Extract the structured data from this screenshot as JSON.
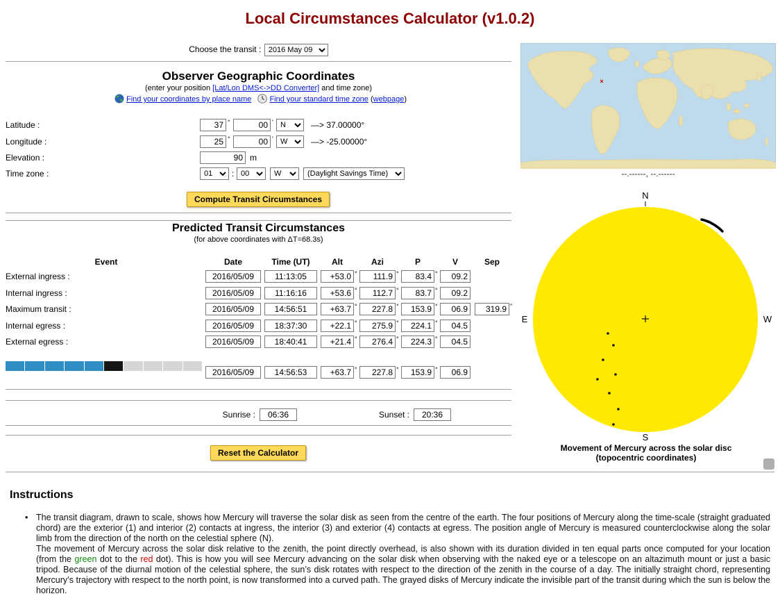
{
  "title": "Local Circumstances Calculator (v1.0.2)",
  "units": {
    "deg": "°",
    "min": "'",
    "arcsec": "\""
  },
  "transit": {
    "label": "Choose the transit :",
    "selected": "2016 May 09"
  },
  "geo": {
    "heading": "Observer Geographic Coordinates",
    "position_prefix": "(enter your position ",
    "converter_link": "[Lat/Lon DMS<->DD Converter]",
    "position_suffix": " and time zone)",
    "find_coords_link": "Find your coordinates by place name",
    "find_tz_link": "Find your standard time zone",
    "webpage_open": "(",
    "webpage_link": "webpage",
    "webpage_close": ")",
    "latitude": {
      "label": "Latitude :",
      "deg": "37",
      "min": "00",
      "hemisphere": "N",
      "decimal": "—> 37.00000°"
    },
    "longitude": {
      "label": "Longitude :",
      "deg": "25",
      "min": "00",
      "hemisphere": "W",
      "decimal": "—> -25.00000°"
    },
    "elevation": {
      "label": "Elevation :",
      "value": "90",
      "unit": "m"
    },
    "timezone": {
      "label": "Time zone :",
      "hour": "01",
      "colon": ":",
      "minute": "00",
      "sign": "W",
      "dst": "(Daylight Savings Time)"
    }
  },
  "buttons": {
    "compute": "Compute Transit Circumstances",
    "reset": "Reset the Calculator"
  },
  "predicted": {
    "heading": "Predicted Transit Circumstances",
    "subheading": "(for above coordinates with ΔT=68.3s)",
    "headers": {
      "event": "Event",
      "date": "Date",
      "time": "Time (UT)",
      "alt": "Alt",
      "azi": "Azi",
      "p": "P",
      "v": "V",
      "sep": "Sep"
    },
    "rows": [
      {
        "label": "External ingress :",
        "date": "2016/05/09",
        "time": "11:13:05",
        "alt": "+53.0",
        "azi": "111.9",
        "p": "83.4",
        "v": "09.2"
      },
      {
        "label": "Internal ingress :",
        "date": "2016/05/09",
        "time": "11:16:16",
        "alt": "+53.6",
        "azi": "112.7",
        "p": "83.7",
        "v": "09.2"
      },
      {
        "label": "Maximum transit :",
        "date": "2016/05/09",
        "time": "14:56:51",
        "alt": "+63.7",
        "azi": "227.8",
        "p": "153.9",
        "v": "06.9",
        "sep": "319.9"
      },
      {
        "label": "Internal egress :",
        "date": "2016/05/09",
        "time": "18:37:30",
        "alt": "+22.1",
        "azi": "275.9",
        "p": "224.1",
        "v": "04.5"
      },
      {
        "label": "External egress :",
        "date": "2016/05/09",
        "time": "18:40:41",
        "alt": "+21.4",
        "azi": "276.4",
        "p": "224.3",
        "v": "04.5"
      }
    ],
    "current": {
      "date": "2016/05/09",
      "time": "14:56:53",
      "alt": "+63.7",
      "azi": "227.8",
      "p": "153.9",
      "v": "06.9"
    }
  },
  "progress": {
    "segments": [
      "#2F8FC5",
      "#2F8FC5",
      "#2F8FC5",
      "#2F8FC5",
      "#2F8FC5",
      "#151515",
      "#D6D6D6",
      "#D6D6D6",
      "#D6D6D6",
      "#D6D6D6"
    ]
  },
  "sun_times": {
    "sunrise_label": "Sunrise :",
    "sunrise": "06:36",
    "sunset_label": "Sunset :",
    "sunset": "20:36"
  },
  "map": {
    "no_coords": "--.------, --.------",
    "marker": "×",
    "ocean_color": "#BFDAEA",
    "land_color": "#EBDFAD",
    "marker_color": "#CC0000"
  },
  "sun_diagram": {
    "north": "N",
    "south": "S",
    "east": "E",
    "west": "W",
    "caption_line1": "Movement of Mercury across the solar disc",
    "caption_line2": "(topocentric coordinates)",
    "sun_color": "#FFE900"
  },
  "instructions": {
    "heading": "Instructions",
    "para1": "The transit diagram, drawn to scale, shows how Mercury will traverse the solar disk as seen from the centre of the earth. The four positions of Mercury along the time-scale (straight graduated chord) are the exterior (1) and interior (2) contacts at ingress, the interior (3) and exterior (4) contacts at egress. The position angle of Mercury is measured counterclockwise along the solar limb from the direction of the north on the celestial sphere (N).",
    "para2a": "The movement of Mercury across the solar disk relative to the zenith, the point directly overhead, is also shown with its duration divided in ten equal parts once computed for your location (from the ",
    "green_word": "green",
    "para2b": " dot to the ",
    "red_word": "red",
    "para2c": " dot). This is how you will see Mercury advancing on the solar disk when observing with the naked eye or a telescope on an altazimuth mount or just a basic tripod. Because of the diurnal motion of the celestial sphere, the sun’s disk rotates with respect to the direction of the zenith in the course of a day. The initially straight chord, representing Mercury’s trajectory with respect to the north point, is now transformed into a curved path. The grayed disks of Mercury indicate the invisible part of the transit during which the sun is below the horizon."
  }
}
